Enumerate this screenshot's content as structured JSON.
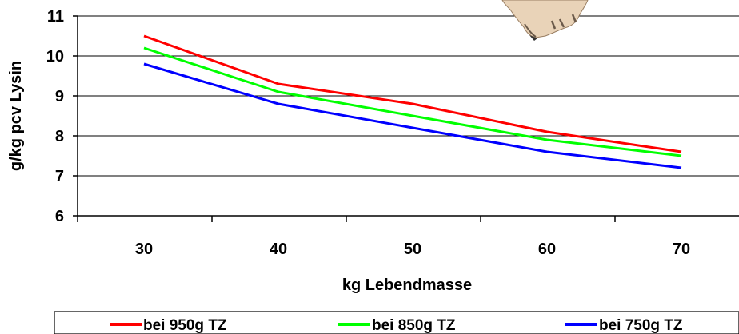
{
  "chart_data": {
    "type": "line",
    "xlabel": "kg Lebendmasse",
    "ylabel": "g/kg pcv Lysin",
    "x": [
      30,
      40,
      50,
      60,
      70
    ],
    "x_ticks": [
      "30",
      "40",
      "50",
      "60",
      "70"
    ],
    "y_ticks": [
      "6",
      "7",
      "8",
      "9",
      "10",
      "11"
    ],
    "ylim": [
      6,
      11
    ],
    "grid": "horizontal",
    "legend_position": "bottom",
    "series": [
      {
        "name": "bei 950g TZ",
        "color": "#ff0000",
        "values": [
          10.5,
          9.3,
          8.8,
          8.1,
          7.6
        ]
      },
      {
        "name": "bei 850g TZ",
        "color": "#00ff00",
        "values": [
          10.2,
          9.1,
          8.5,
          7.9,
          7.5
        ]
      },
      {
        "name": "bei 750g TZ",
        "color": "#0000ff",
        "values": [
          9.8,
          8.8,
          8.2,
          7.6,
          7.2
        ]
      }
    ]
  }
}
